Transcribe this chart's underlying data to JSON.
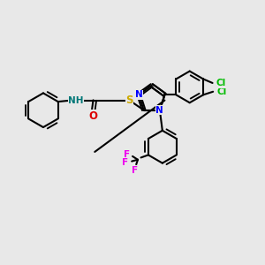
{
  "bg_color": "#e8e8e8",
  "bond_color": "#000000",
  "bond_lw": 1.5,
  "dbl_sep": 0.06,
  "atom_colors": {
    "N": "#0000ff",
    "O": "#dd0000",
    "S": "#ccaa00",
    "Cl": "#00bb00",
    "F": "#ee00ee",
    "NH": "#007777"
  },
  "fs": 8.5,
  "fss": 7.5
}
